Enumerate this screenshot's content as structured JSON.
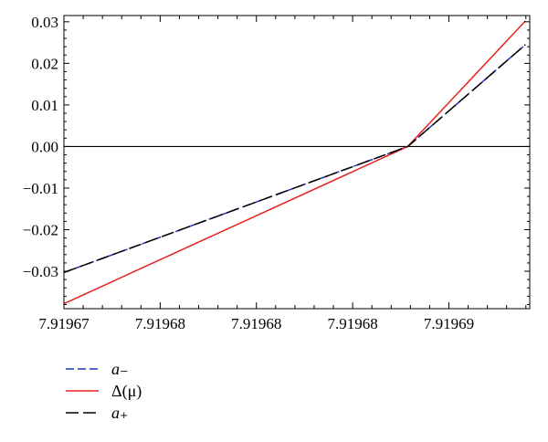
{
  "chart_data": {
    "type": "line",
    "title": "",
    "xlabel": "",
    "ylabel": "",
    "x_ticks": [
      "7.91967",
      "7.91968",
      "7.91968",
      "7.91968",
      "7.91969"
    ],
    "y_ticks": [
      "0.03",
      "0.02",
      "0.01",
      "0.00",
      "−0.01",
      "−0.02",
      "−0.03"
    ],
    "y_tick_values": [
      0.03,
      0.02,
      0.01,
      0.0,
      -0.01,
      -0.02,
      -0.03
    ],
    "ylim": [
      -0.039,
      0.0315
    ],
    "xlim": [
      7.91967,
      7.9196942
    ],
    "grid": false,
    "zero_line": true,
    "legend_position": "bottom-left",
    "series": [
      {
        "name": "a₋",
        "color": "#2233bb",
        "dash": "short-dash",
        "points": [
          [
            7.91967,
            -0.0303
          ],
          [
            7.91968786,
            0.0
          ],
          [
            7.91969398,
            0.0245
          ]
        ]
      },
      {
        "name": "Δ(μ)",
        "color": "#e8201c",
        "dash": "solid",
        "points": [
          [
            7.91967,
            -0.0378
          ],
          [
            7.91968786,
            0.0
          ],
          [
            7.91969398,
            0.0302
          ]
        ]
      },
      {
        "name": "a₊",
        "color": "#000000",
        "dash": "long-dash",
        "points": [
          [
            7.91967,
            -0.0303
          ],
          [
            7.91968786,
            0.0
          ],
          [
            7.91969398,
            0.0245
          ]
        ]
      }
    ],
    "legend": [
      {
        "label": "a₋",
        "color": "#2233bb",
        "dash": "short-dash"
      },
      {
        "label": "Δ(μ)",
        "color": "#e8201c",
        "dash": "solid"
      },
      {
        "label": "a₊",
        "color": "#000000",
        "dash": "long-dash"
      }
    ]
  }
}
